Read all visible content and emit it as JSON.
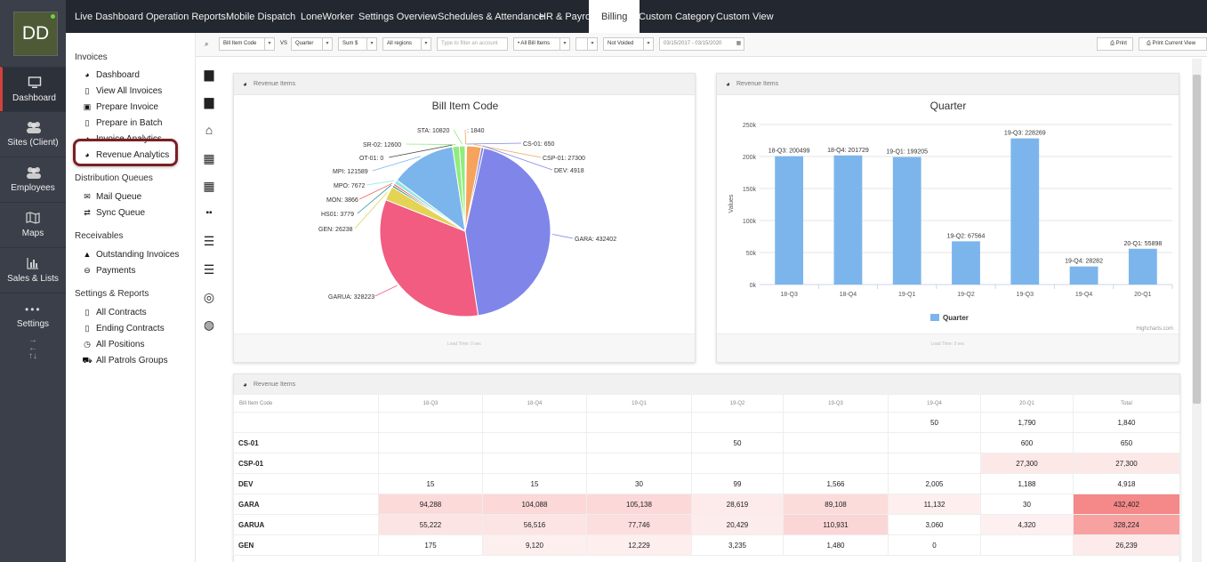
{
  "rail": {
    "logo": "DD",
    "items": [
      {
        "label": "Dashboard",
        "icon": "monitor-icon"
      },
      {
        "label": "Sites (Client)",
        "icon": "people-icon"
      },
      {
        "label": "Employees",
        "icon": "people-icon"
      },
      {
        "label": "Maps",
        "icon": "map-icon"
      },
      {
        "label": "Sales & Lists",
        "icon": "bar-chart-icon"
      },
      {
        "label": "Settings",
        "icon": "dots-icon"
      }
    ]
  },
  "topnav": {
    "tabs": [
      "Live Dashboard",
      "Operation Reports",
      "Mobile Dispatch",
      "LoneWorker",
      "Settings Overview",
      "Schedules & Attendance",
      "HR & Payroll",
      "Billing",
      "Custom Category",
      "Custom View"
    ],
    "active": "Billing"
  },
  "menu": {
    "invoices_title": "Invoices",
    "invoices": [
      "Dashboard",
      "View All Invoices",
      "Prepare Invoice",
      "Prepare in Batch",
      "Invoice Analytics",
      "Revenue Analytics"
    ],
    "distribution_title": "Distribution Queues",
    "distribution": [
      "Mail Queue",
      "Sync Queue"
    ],
    "receivables_title": "Receivables",
    "receivables": [
      "Outstanding Invoices",
      "Payments"
    ],
    "settings_title": "Settings & Reports",
    "settings": [
      "All Contracts",
      "Ending Contracts",
      "All Positions",
      "All Patrols Groups"
    ]
  },
  "toolbar": {
    "group_by": "Bill Item Code",
    "vs_label": "VS",
    "compare_by": "Quarter",
    "measure": "Sum $",
    "regions": "All regions",
    "account_placeholder": "Type to filter an account",
    "bill_items": "• All Bill Items",
    "extra": "",
    "voided": "Not Voided",
    "date_range": "03/15/2017 - 03/15/2020",
    "print_label": "Print",
    "print_view_label": "Print Current View"
  },
  "panel_title": "Revenue Items",
  "pie": {
    "title": "Bill Item Code",
    "footer": "Load Time: 0 sec",
    "slices": [
      {
        "label": "",
        "value": 1840,
        "color": "#f7a35c"
      },
      {
        "label": "CS-01",
        "value": 650,
        "color": "#8085e9"
      },
      {
        "label": "CSP-01",
        "value": 27300,
        "color": "#f7a35c"
      },
      {
        "label": "DEV",
        "value": 4918,
        "color": "#8085e9"
      },
      {
        "label": "GARA",
        "value": 432402,
        "color": "#8085e9"
      },
      {
        "label": "GARUA",
        "value": 328223,
        "color": "#f15c80"
      },
      {
        "label": "GEN",
        "value": 26238,
        "color": "#e4d354"
      },
      {
        "label": "HS01",
        "value": 3779,
        "color": "#2b908f"
      },
      {
        "label": "MON",
        "value": 3866,
        "color": "#f45b5b"
      },
      {
        "label": "MPO",
        "value": 7672,
        "color": "#91e8e1"
      },
      {
        "label": "MPI",
        "value": 121589,
        "color": "#7cb5ec"
      },
      {
        "label": "OT-01",
        "value": 0,
        "color": "#434348"
      },
      {
        "label": "SR-02",
        "value": 12600,
        "color": "#90ed7d"
      },
      {
        "label": "STA",
        "value": 10820,
        "color": "#90ed7d"
      }
    ],
    "label_text": [
      "STA: 10820",
      ": 1840",
      "CS-01: 650",
      "CSP-01: 27300",
      "DEV: 4918",
      "GARA: 432402",
      "GARUA: 328223",
      "GEN: 26238",
      "HS01: 3779",
      "MON: 3866",
      "MPO: 7672",
      "MPI: 121589",
      "OT-01: 0",
      "SR-02: 12600"
    ]
  },
  "chart_data": {
    "type": "bar",
    "title": "Quarter",
    "categories": [
      "18-Q3",
      "18-Q4",
      "19-Q1",
      "19-Q2",
      "19-Q3",
      "19-Q4",
      "20-Q1"
    ],
    "series": [
      {
        "name": "Quarter",
        "values": [
          200499,
          201729,
          199205,
          67564,
          228269,
          28282,
          55898
        ],
        "color": "#7cb5ec"
      }
    ],
    "ylabel": "Values",
    "ylim": [
      0,
      250000
    ],
    "yticks": [
      "0k",
      "50k",
      "100k",
      "150k",
      "200k",
      "250k"
    ],
    "data_labels": [
      "18-Q3: 200499",
      "18-Q4: 201729",
      "19-Q1: 199205",
      "19-Q2: 67564",
      "19-Q3: 228269",
      "19-Q4: 28282",
      "20-Q1: 55898"
    ],
    "credit": "Highcharts.com",
    "footer": "Load Time: 0 sec",
    "legend": "bottom-center"
  },
  "table": {
    "headers": [
      "Bill Item Code",
      "18-Q3",
      "18-Q4",
      "19-Q1",
      "19-Q2",
      "19-Q3",
      "19-Q4",
      "20-Q1",
      "Total"
    ],
    "rows": [
      [
        "",
        "",
        "",
        "",
        "",
        "",
        "50",
        "1,790",
        "1,840"
      ],
      [
        "CS-01",
        "",
        "",
        "",
        "50",
        "",
        "",
        "600",
        "650"
      ],
      [
        "CSP-01",
        "",
        "",
        "",
        "",
        "",
        "",
        "27,300",
        "27,300"
      ],
      [
        "DEV",
        "15",
        "15",
        "30",
        "99",
        "1,566",
        "2,005",
        "1,188",
        "4,918"
      ],
      [
        "GARA",
        "94,288",
        "104,088",
        "105,138",
        "28,619",
        "89,108",
        "11,132",
        "30",
        "432,402"
      ],
      [
        "GARUA",
        "55,222",
        "56,516",
        "77,746",
        "20,429",
        "110,931",
        "3,060",
        "4,320",
        "328,224"
      ],
      [
        "GEN",
        "175",
        "9,120",
        "12,229",
        "3,235",
        "1,480",
        "0",
        "",
        "26,239"
      ]
    ],
    "heat": [
      [
        0,
        0,
        0,
        0,
        0,
        0,
        0,
        0
      ],
      [
        0,
        0,
        0,
        0,
        0,
        0,
        0,
        0
      ],
      [
        0,
        0,
        0,
        0,
        0,
        0,
        0.08,
        0.08
      ],
      [
        0,
        0,
        0,
        0,
        0,
        0,
        0,
        0
      ],
      [
        0.22,
        0.24,
        0.24,
        0.07,
        0.21,
        0.03,
        0,
        1
      ],
      [
        0.13,
        0.13,
        0.18,
        0.05,
        0.26,
        0,
        0.01,
        0.76
      ],
      [
        0,
        0.02,
        0.03,
        0,
        0,
        0,
        0,
        0.06
      ]
    ]
  }
}
